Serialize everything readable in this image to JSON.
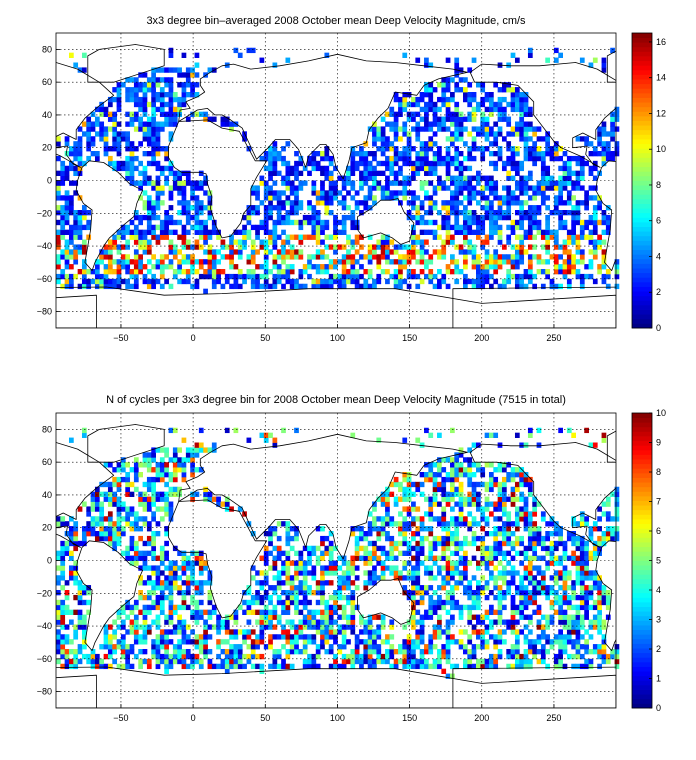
{
  "chart_data": [
    {
      "type": "heatmap",
      "title": "3x3 degree bin–averaged 2008 October mean Deep Velocity Magnitude, cm/s",
      "xlim": [
        -95,
        293
      ],
      "ylim": [
        -90,
        90
      ],
      "xticks": [
        -50,
        0,
        50,
        100,
        150,
        200,
        250
      ],
      "yticks": [
        -80,
        -60,
        -40,
        -20,
        0,
        20,
        40,
        60,
        80
      ],
      "grid": true,
      "bin_size_deg": 3,
      "colorbar": {
        "min": 0,
        "max": 16.5,
        "ticks": [
          0,
          2,
          4,
          6,
          8,
          10,
          12,
          14,
          16
        ],
        "colormap": "jet",
        "placement": "right"
      }
    },
    {
      "type": "heatmap",
      "title": "N of cycles per 3x3 degree bin for 2008 October mean Deep Velocity Magnitude (7515 in total)",
      "xlim": [
        -95,
        293
      ],
      "ylim": [
        -90,
        90
      ],
      "xticks": [
        -50,
        0,
        50,
        100,
        150,
        200,
        250
      ],
      "yticks": [
        -80,
        -60,
        -40,
        -20,
        0,
        20,
        40,
        60,
        80
      ],
      "grid": true,
      "bin_size_deg": 3,
      "colorbar": {
        "min": 0,
        "max": 10,
        "ticks": [
          0,
          1,
          2,
          3,
          4,
          5,
          6,
          7,
          8,
          9,
          10
        ],
        "colormap": "jet",
        "placement": "right"
      }
    }
  ]
}
